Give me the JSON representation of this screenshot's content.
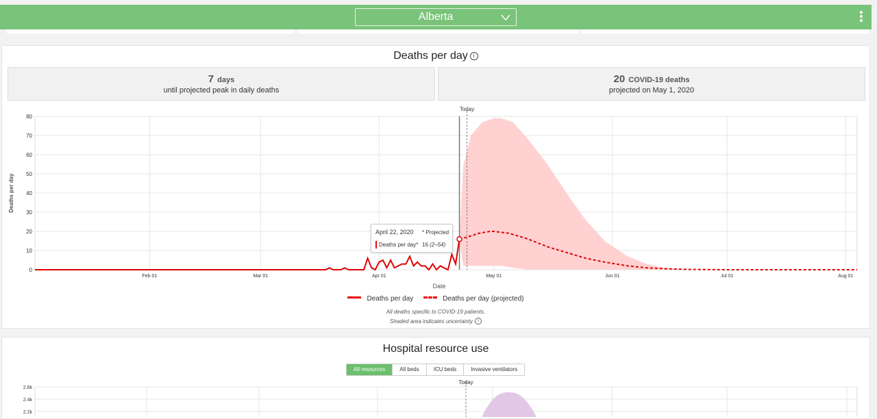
{
  "header": {
    "region": "Alberta",
    "chevron_icon": "chevron-down-icon",
    "menu_icon": "kebab-menu-icon"
  },
  "deaths_card": {
    "title": "Deaths per day",
    "info_icon": "info-icon",
    "stat_peak": {
      "number": "7",
      "unit": "days",
      "caption": "until projected peak in daily deaths"
    },
    "stat_deaths": {
      "number": "20",
      "unit": "COVID-19 deaths",
      "caption": "projected on May 1, 2020"
    },
    "today_label": "Today",
    "tooltip": {
      "date": "April 22, 2020",
      "tag": "* Projected",
      "series": "Deaths per day*",
      "value": "16",
      "range": "(2–54)"
    },
    "legend": [
      {
        "label": "Deaths per day"
      },
      {
        "label": "Deaths per day (projected)"
      }
    ],
    "footnote1": "All deaths specific to COVID-19 patients.",
    "footnote2": "Shaded area indicates uncertainty"
  },
  "hospital_card": {
    "title": "Hospital resource use",
    "tabs": [
      "All resources",
      "All beds",
      "ICU beds",
      "Invasive ventilators"
    ],
    "active_tab": "All resources",
    "today_label": "Today",
    "y_ticks": [
      "2.6k",
      "2.4k",
      "2.2k"
    ]
  },
  "colors": {
    "header": "#7ac37a",
    "series": "#e00000",
    "band": "#ffc9c9",
    "hospital_band": "#e2c7e6",
    "active_tab": "#6cbf6c"
  },
  "chart_data": [
    {
      "type": "line",
      "title": "Deaths per day",
      "xlabel": "Date",
      "ylabel": "Deaths per day",
      "x_ticks": [
        "Feb 01",
        "Mar 01",
        "Apr 01",
        "May 01",
        "Jun 01",
        "Jul 01",
        "Aug 01"
      ],
      "y_ticks": [
        0,
        10,
        20,
        30,
        40,
        50,
        60,
        70,
        80
      ],
      "ylim": [
        0,
        80
      ],
      "xlim": [
        "2020-01-02",
        "2020-08-04"
      ],
      "today": "2020-04-22",
      "grid": true,
      "legend": "bottom",
      "series": [
        {
          "name": "Deaths per day",
          "style": "solid",
          "x": [
            "2020-01-02",
            "2020-03-18",
            "2020-03-19",
            "2020-03-20",
            "2020-03-22",
            "2020-03-23",
            "2020-03-24",
            "2020-03-25",
            "2020-03-26",
            "2020-03-27",
            "2020-03-28",
            "2020-03-29",
            "2020-03-30",
            "2020-03-31",
            "2020-04-01",
            "2020-04-02",
            "2020-04-03",
            "2020-04-04",
            "2020-04-05",
            "2020-04-06",
            "2020-04-07",
            "2020-04-08",
            "2020-04-09",
            "2020-04-10",
            "2020-04-11",
            "2020-04-12",
            "2020-04-13",
            "2020-04-14",
            "2020-04-15",
            "2020-04-16",
            "2020-04-17",
            "2020-04-18",
            "2020-04-19",
            "2020-04-20",
            "2020-04-21",
            "2020-04-22"
          ],
          "y": [
            0,
            0,
            1,
            0,
            0,
            1,
            0,
            0,
            0,
            0,
            0,
            6,
            1,
            0,
            4,
            5,
            1,
            5,
            1,
            2,
            3,
            3,
            7,
            2,
            4,
            2,
            2,
            0,
            3,
            0,
            2,
            1,
            0,
            8,
            3,
            16
          ]
        },
        {
          "name": "Deaths per day (projected)",
          "style": "dashed",
          "x": [
            "2020-04-22",
            "2020-04-24",
            "2020-04-27",
            "2020-04-30",
            "2020-05-01",
            "2020-05-05",
            "2020-05-10",
            "2020-05-15",
            "2020-05-20",
            "2020-05-25",
            "2020-05-30",
            "2020-06-05",
            "2020-06-10",
            "2020-06-15",
            "2020-06-20",
            "2020-07-01",
            "2020-08-04"
          ],
          "y": [
            16,
            17,
            19,
            20,
            20,
            19,
            16,
            12,
            9,
            6,
            4,
            2,
            1,
            0.5,
            0.2,
            0,
            0
          ]
        }
      ],
      "uncertainty": {
        "x": [
          "2020-04-22",
          "2020-04-23",
          "2020-04-25",
          "2020-04-28",
          "2020-05-01",
          "2020-05-03",
          "2020-05-06",
          "2020-05-10",
          "2020-05-15",
          "2020-05-20",
          "2020-05-25",
          "2020-05-30",
          "2020-06-05",
          "2020-06-10",
          "2020-06-15",
          "2020-06-20",
          "2020-06-25",
          "2020-07-05",
          "2020-08-04"
        ],
        "upper": [
          16,
          54,
          70,
          77,
          79,
          79,
          77,
          68,
          55,
          40,
          26,
          15,
          7,
          3,
          1,
          0.3,
          0,
          0,
          0
        ],
        "lower": [
          16,
          2,
          2,
          2,
          2,
          2,
          1,
          0,
          0,
          0,
          0,
          0,
          0,
          0,
          0,
          0,
          0,
          0,
          0
        ]
      }
    }
  ]
}
